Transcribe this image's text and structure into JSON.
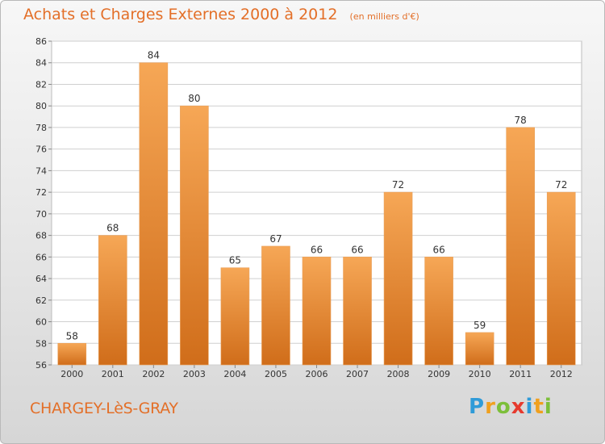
{
  "header": {
    "title": "Achats et Charges Externes 2000 à 2012",
    "subtitle": "(en milliers d'€)"
  },
  "footer": {
    "commune": "CHARGEY-LèS-GRAY",
    "brand": "Proxiti",
    "brand_letters": [
      {
        "ch": "P",
        "color": "#2f9bd8"
      },
      {
        "ch": "r",
        "color": "#f0a01e"
      },
      {
        "ch": "o",
        "color": "#7cbf3a"
      },
      {
        "ch": "x",
        "color": "#e63a2e"
      },
      {
        "ch": "i",
        "color": "#2f9bd8"
      },
      {
        "ch": "t",
        "color": "#f0a01e"
      },
      {
        "ch": "i",
        "color": "#7cbf3a"
      }
    ]
  },
  "colors": {
    "accent": "#e36f28",
    "bar_top": "#f6a756",
    "bar_bottom": "#d06d1a",
    "grid": "#cfcfcf",
    "plot_bg": "#ffffff"
  },
  "chart_data": {
    "type": "bar",
    "title": "Achats et Charges Externes 2000 à 2012",
    "subtitle": "(en milliers d'€)",
    "categories": [
      "2000",
      "2001",
      "2002",
      "2003",
      "2004",
      "2005",
      "2006",
      "2007",
      "2008",
      "2009",
      "2010",
      "2011",
      "2012"
    ],
    "values": [
      58,
      68,
      84,
      80,
      65,
      67,
      66,
      66,
      72,
      66,
      59,
      78,
      72
    ],
    "ylim": [
      56,
      86
    ],
    "yticks": [
      56,
      58,
      60,
      62,
      64,
      66,
      68,
      70,
      72,
      74,
      76,
      78,
      80,
      82,
      84,
      86
    ],
    "grid": true,
    "data_labels": true
  }
}
